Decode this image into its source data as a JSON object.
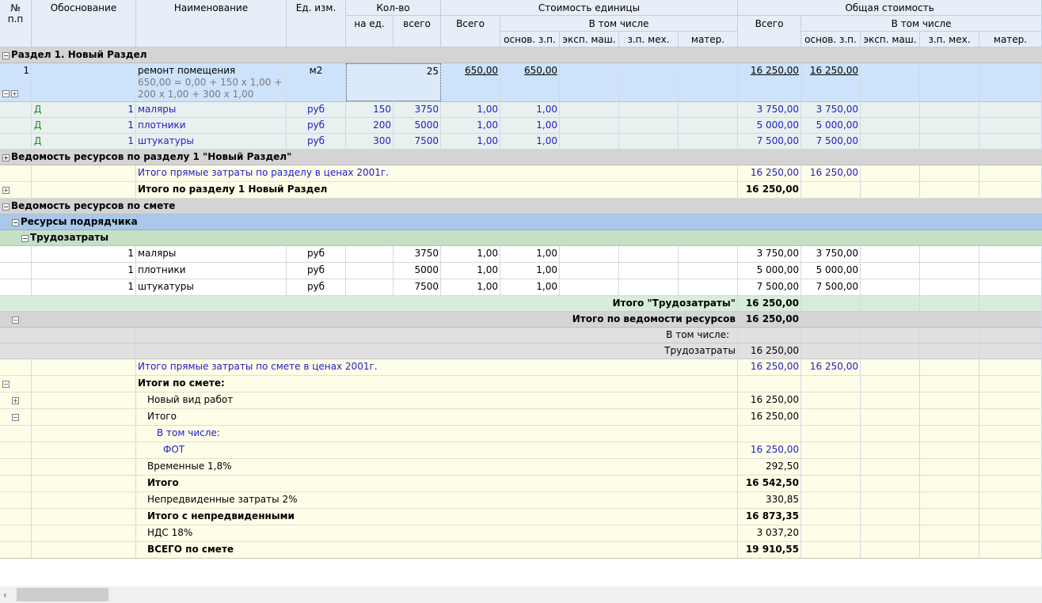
{
  "header": {
    "num": "№",
    "num2": "п.п",
    "basis": "Обоснование",
    "name": "Наименование",
    "unit": "Ед. изм.",
    "qty": "Кол-во",
    "qty_per": "на ед.",
    "qty_total": "всего",
    "unit_cost": "Стоимость единицы",
    "uc_total": "Всего",
    "uc_incl": "В том числе",
    "incl_cols": [
      "основ. з.п.",
      "эксп. маш.",
      "з.п. мех.",
      "матер."
    ],
    "total_cost": "Общая стоимость",
    "tc_total": "Всего",
    "tc_incl": "В том числе"
  },
  "section1": {
    "title": "Раздел 1. Новый Раздел"
  },
  "item1": {
    "num": "1",
    "name": "ремонт помещения",
    "formula1": "650,00 = 0,00 + 150 x 1,00 +",
    "formula2": "200 x 1,00 + 300 x 1,00",
    "unit": "м2",
    "qty_total": "25",
    "uc_total": "650,00",
    "uc_zp": "650,00",
    "tc_total": "16 250,00",
    "tc_zp": "16 250,00"
  },
  "resources": [
    {
      "code": "Д",
      "n": "1",
      "name": "маляры",
      "unit": "руб",
      "per": "150",
      "total": "3750",
      "uc": "1,00",
      "uczp": "1,00",
      "tc": "3 750,00",
      "tczp": "3 750,00"
    },
    {
      "code": "Д",
      "n": "1",
      "name": "плотники",
      "unit": "руб",
      "per": "200",
      "total": "5000",
      "uc": "1,00",
      "uczp": "1,00",
      "tc": "5 000,00",
      "tczp": "5 000,00"
    },
    {
      "code": "Д",
      "n": "1",
      "name": "штукатуры",
      "unit": "руб",
      "per": "300",
      "total": "7500",
      "uc": "1,00",
      "uczp": "1,00",
      "tc": "7 500,00",
      "tczp": "7 500,00"
    }
  ],
  "vedomost1": {
    "title": "Ведомость ресурсов по разделу 1 \"Новый Раздел\""
  },
  "direct1": {
    "label": "Итого прямые затраты по разделу в ценах 2001г.",
    "total": "16 250,00",
    "zp": "16 250,00"
  },
  "total1": {
    "label": "Итого по разделу 1 Новый Раздел",
    "total": "16 250,00"
  },
  "vedomost_all": {
    "title": "Ведомость ресурсов по смете"
  },
  "contractor": {
    "title": "Ресурсы подрядчика"
  },
  "labor": {
    "title": "Трудозатраты"
  },
  "labor_rows": [
    {
      "n": "1",
      "name": "маляры",
      "unit": "руб",
      "total": "3750",
      "uc": "1,00",
      "uczp": "1,00",
      "tc": "3 750,00",
      "tczp": "3 750,00"
    },
    {
      "n": "1",
      "name": "плотники",
      "unit": "руб",
      "total": "5000",
      "uc": "1,00",
      "uczp": "1,00",
      "tc": "5 000,00",
      "tczp": "5 000,00"
    },
    {
      "n": "1",
      "name": "штукатуры",
      "unit": "руб",
      "total": "7500",
      "uc": "1,00",
      "uczp": "1,00",
      "tc": "7 500,00",
      "tczp": "7 500,00"
    }
  ],
  "labor_total": {
    "label": "Итого \"Трудозатраты\"",
    "total": "16 250,00"
  },
  "ved_total": {
    "label": "Итого по ведомости ресурсов",
    "total": "16 250,00"
  },
  "incl": {
    "label": "В том числе:"
  },
  "incl_labor": {
    "label": "Трудозатраты",
    "total": "16 250,00"
  },
  "direct_all": {
    "label": "Итого прямые затраты по смете в ценах 2001г.",
    "total": "16 250,00",
    "zp": "16 250,00"
  },
  "summary": {
    "title": "Итоги по смете:",
    "rows": [
      {
        "label": "Новый вид работ",
        "total": "16 250,00"
      },
      {
        "label": "Итого",
        "total": "16 250,00"
      },
      {
        "label": "В том числе:",
        "total": ""
      },
      {
        "label": "ФОТ",
        "total": "16 250,00"
      },
      {
        "label": "Временные 1,8%",
        "total": "292,50"
      },
      {
        "label": "Итого",
        "total": "16 542,50"
      },
      {
        "label": "Непредвиденные затраты 2%",
        "total": "330,85"
      },
      {
        "label": "Итого с непредвиденными",
        "total": "16 873,35"
      },
      {
        "label": "НДС 18%",
        "total": "3 037,20"
      },
      {
        "label": "ВСЕГО по смете",
        "total": "19 910,55"
      }
    ]
  },
  "colors": {
    "header_bg": "#e7eef8",
    "selected_row": "#cde3fb",
    "section_grey": "#d4d4d4",
    "contractor_blue": "#a8c8ec",
    "labor_green": "#c5e0c5",
    "yellow_row": "#fdfde8",
    "link_blue": "#2020c8"
  }
}
